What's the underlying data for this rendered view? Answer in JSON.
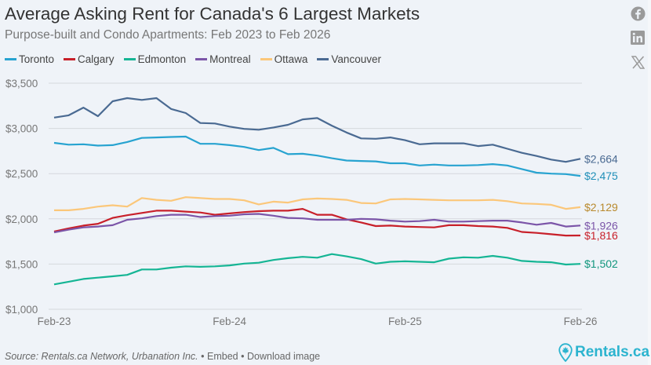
{
  "header": {
    "title": "Average Asking Rent for Canada's 6 Largest Markets",
    "subtitle": "Purpose-built and Condo Apartments: Feb 2023 to Feb 2026"
  },
  "social": [
    {
      "name": "facebook-icon",
      "glyph": "f"
    },
    {
      "name": "linkedin-icon",
      "glyph": "in"
    },
    {
      "name": "x-icon",
      "glyph": "𝕏"
    }
  ],
  "footer": {
    "source": "Source: Rentals.ca Network, Urbanation Inc.",
    "embed": "Embed",
    "download": "Download image",
    "bullet": "•",
    "brand": "Rentals.ca"
  },
  "chart_data": {
    "type": "line",
    "title": "Average Asking Rent for Canada's 6 Largest Markets",
    "subtitle": "Purpose-built and Condo Apartments: Feb 2023 to Feb 2026",
    "xlabel": "",
    "ylabel": "",
    "x_start": "Feb-23",
    "x_ticks": [
      "Feb-23",
      "Feb-24",
      "Feb-25",
      "Feb-26"
    ],
    "x_tick_indices": [
      0,
      12,
      24,
      36
    ],
    "y_ticks": [
      1000,
      1500,
      2000,
      2500,
      3000,
      3500
    ],
    "y_tick_labels": [
      "$1,000",
      "$1,500",
      "$2,000",
      "$2,500",
      "$3,000",
      "$3,500"
    ],
    "ylim": [
      1000,
      3500
    ],
    "grid": "horizontal",
    "legend": "top-left",
    "series": [
      {
        "name": "Toronto",
        "color": "#27a3d0",
        "end_label": "$2,475",
        "values": [
          2840,
          2820,
          2825,
          2810,
          2815,
          2850,
          2895,
          2900,
          2905,
          2910,
          2830,
          2830,
          2815,
          2795,
          2760,
          2785,
          2715,
          2720,
          2700,
          2670,
          2645,
          2640,
          2635,
          2615,
          2615,
          2590,
          2600,
          2590,
          2590,
          2595,
          2605,
          2590,
          2550,
          2510,
          2500,
          2495,
          2475
        ]
      },
      {
        "name": "Calgary",
        "color": "#c8202a",
        "end_label": "$1,816",
        "values": [
          1860,
          1895,
          1925,
          1945,
          2010,
          2040,
          2065,
          2090,
          2090,
          2080,
          2070,
          2045,
          2060,
          2075,
          2085,
          2090,
          2090,
          2110,
          2045,
          2045,
          1995,
          1960,
          1920,
          1925,
          1915,
          1910,
          1905,
          1930,
          1930,
          1920,
          1915,
          1900,
          1855,
          1845,
          1830,
          1815,
          1816
        ]
      },
      {
        "name": "Edmonton",
        "color": "#15b594",
        "end_label": "$1,502",
        "values": [
          1275,
          1305,
          1335,
          1350,
          1365,
          1380,
          1440,
          1440,
          1460,
          1475,
          1470,
          1475,
          1485,
          1505,
          1515,
          1545,
          1565,
          1580,
          1570,
          1610,
          1585,
          1555,
          1505,
          1525,
          1530,
          1525,
          1520,
          1560,
          1575,
          1570,
          1590,
          1570,
          1535,
          1525,
          1520,
          1495,
          1502
        ]
      },
      {
        "name": "Montreal",
        "color": "#7b55a8",
        "end_label": "$1,926",
        "values": [
          1850,
          1880,
          1905,
          1915,
          1930,
          1990,
          2005,
          2030,
          2045,
          2045,
          2020,
          2030,
          2035,
          2050,
          2055,
          2035,
          2010,
          2005,
          1990,
          1990,
          1990,
          2000,
          1995,
          1980,
          1970,
          1975,
          1990,
          1970,
          1970,
          1975,
          1980,
          1980,
          1960,
          1935,
          1955,
          1915,
          1926
        ]
      },
      {
        "name": "Ottawa",
        "color": "#fbc77a",
        "end_label": "$2,129",
        "values": [
          2095,
          2095,
          2110,
          2135,
          2150,
          2135,
          2230,
          2210,
          2200,
          2240,
          2230,
          2220,
          2220,
          2205,
          2160,
          2190,
          2180,
          2215,
          2225,
          2220,
          2210,
          2175,
          2170,
          2215,
          2220,
          2215,
          2210,
          2205,
          2205,
          2205,
          2210,
          2195,
          2170,
          2165,
          2155,
          2110,
          2129
        ]
      },
      {
        "name": "Vancouver",
        "color": "#4a6a92",
        "end_label": "$2,664",
        "values": [
          3120,
          3145,
          3230,
          3135,
          3300,
          3335,
          3315,
          3335,
          3215,
          3170,
          3060,
          3055,
          3020,
          2995,
          2985,
          3010,
          3040,
          3100,
          3115,
          3030,
          2955,
          2890,
          2885,
          2900,
          2870,
          2825,
          2835,
          2835,
          2835,
          2805,
          2820,
          2775,
          2730,
          2695,
          2655,
          2630,
          2664
        ]
      }
    ]
  }
}
